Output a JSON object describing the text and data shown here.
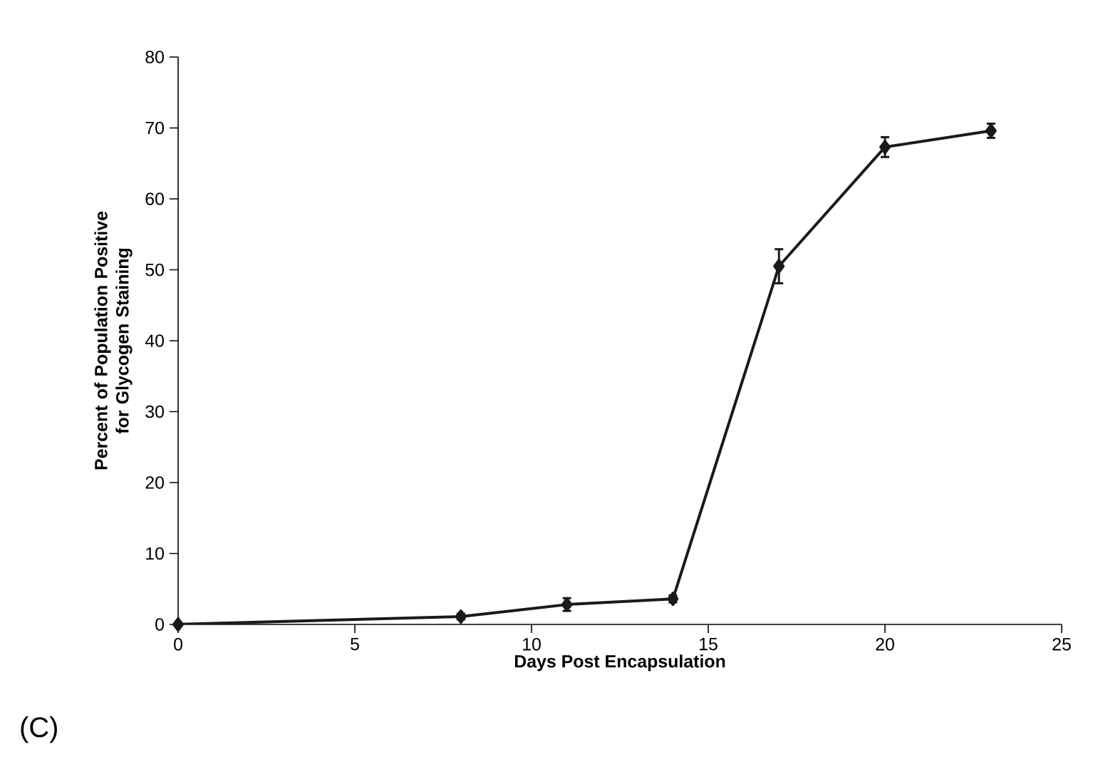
{
  "chart_data": {
    "type": "line",
    "xlabel": "Days Post Encapsulation",
    "ylabel": "Percent of Population Positive for Glycogen Staining",
    "x": [
      0,
      8,
      11,
      14,
      17,
      20,
      23
    ],
    "values": [
      0,
      1.1,
      2.8,
      3.6,
      50.5,
      67.3,
      69.6
    ],
    "errors": [
      null,
      0.4,
      0.9,
      0.5,
      2.4,
      1.4,
      1.0
    ],
    "color": "#1a1a1a",
    "marker": "diamond",
    "line_style": "solid",
    "xlim": [
      0,
      25
    ],
    "xticks": [
      0,
      5,
      10,
      15,
      20,
      25
    ],
    "ylim": [
      0,
      80
    ],
    "yticks": [
      0,
      10,
      20,
      30,
      40,
      50,
      60,
      70,
      80
    ],
    "annotations": [
      "(C)"
    ]
  }
}
